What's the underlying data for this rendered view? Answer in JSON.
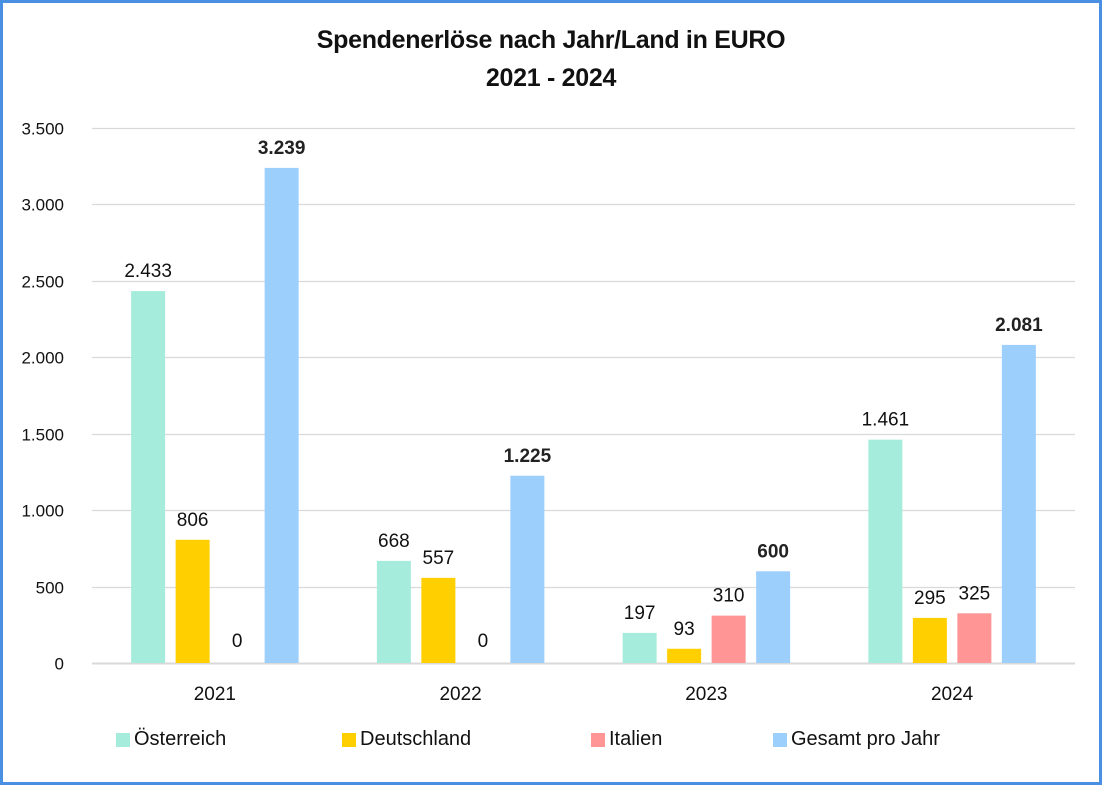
{
  "chart_data": {
    "type": "bar",
    "title": "Spendenerlöse nach Jahr/Land in EURO",
    "subtitle": "2021 - 2024",
    "xlabel": "",
    "ylabel": "",
    "ylim": [
      0,
      3500
    ],
    "yticks": [
      0,
      500,
      1000,
      1500,
      2000,
      2500,
      3000,
      3500
    ],
    "ytick_labels": [
      "0",
      "500",
      "1.000",
      "1.500",
      "2.000",
      "2.500",
      "3.000",
      "3.500"
    ],
    "grid": true,
    "legend_position": "bottom",
    "categories": [
      "2021",
      "2022",
      "2023",
      "2024"
    ],
    "series": [
      {
        "name": "Österreich",
        "color": "#a6ecdc",
        "values": [
          2433,
          668,
          197,
          1461
        ],
        "labels": [
          "2.433",
          "668",
          "197",
          "1.461"
        ],
        "bold_labels": false
      },
      {
        "name": "Deutschland",
        "color": "#ffcf00",
        "values": [
          806,
          557,
          93,
          295
        ],
        "labels": [
          "806",
          "557",
          "93",
          "295"
        ],
        "bold_labels": false
      },
      {
        "name": "Italien",
        "color": "#ff9594",
        "values": [
          0,
          0,
          310,
          325
        ],
        "labels": [
          "0",
          "0",
          "310",
          "325"
        ],
        "bold_labels": false
      },
      {
        "name": "Gesamt pro Jahr",
        "color": "#9dcffd",
        "values": [
          3239,
          1225,
          600,
          2081
        ],
        "labels": [
          "3.239",
          "1.225",
          "600",
          "2.081"
        ],
        "bold_labels": true
      }
    ]
  }
}
